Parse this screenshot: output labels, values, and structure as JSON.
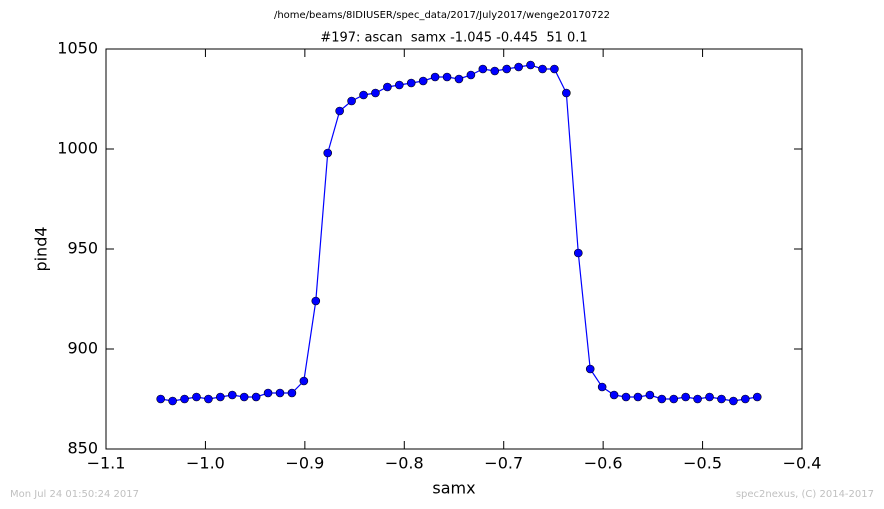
{
  "chart_data": {
    "type": "line",
    "title": "/home/beams/8IDIUSER/spec_data/2017/July2017/wenge20170722",
    "subtitle": "#197: ascan  samx -1.045 -0.445  51 0.1",
    "x_label": "samx",
    "y_label": "pind4",
    "annotations": [
      "Mon Jul 24 01:50:24 2017",
      "spec2nexus, (C) 2014-2017"
    ],
    "x": [
      -1.045,
      -1.033,
      -1.021,
      -1.009,
      -0.997,
      -0.985,
      -0.973,
      -0.961,
      -0.949,
      -0.937,
      -0.925,
      -0.913,
      -0.901,
      -0.889,
      -0.877,
      -0.865,
      -0.853,
      -0.841,
      -0.829,
      -0.817,
      -0.805,
      -0.793,
      -0.781,
      -0.769,
      -0.757,
      -0.745,
      -0.733,
      -0.721,
      -0.709,
      -0.697,
      -0.685,
      -0.673,
      -0.661,
      -0.649,
      -0.637,
      -0.625,
      -0.613,
      -0.601,
      -0.589,
      -0.577,
      -0.565,
      -0.553,
      -0.541,
      -0.529,
      -0.517,
      -0.505,
      -0.493,
      -0.481,
      -0.469,
      -0.457,
      -0.445
    ],
    "series": [
      {
        "name": "pind4",
        "color": "#0000ff",
        "values": [
          875,
          874,
          875,
          876,
          875,
          876,
          877,
          876,
          876,
          878,
          878,
          878,
          884,
          924,
          998,
          1019,
          1024,
          1027,
          1028,
          1031,
          1032,
          1033,
          1034,
          1036,
          1036,
          1035,
          1037,
          1040,
          1039,
          1040,
          1041,
          1042,
          1040,
          1040,
          1028,
          948,
          890,
          881,
          877,
          876,
          876,
          877,
          875,
          875,
          876,
          875,
          876,
          875,
          874,
          875,
          876
        ]
      }
    ],
    "xlim": [
      -1.1,
      -0.4
    ],
    "xticks": [
      {
        "value": -1.1,
        "label": "−1.1"
      },
      {
        "value": -1.0,
        "label": "−1.0"
      },
      {
        "value": -0.9,
        "label": "−0.9"
      },
      {
        "value": -0.8,
        "label": "−0.8"
      },
      {
        "value": -0.7,
        "label": "−0.7"
      },
      {
        "value": -0.6,
        "label": "−0.6"
      },
      {
        "value": -0.5,
        "label": "−0.5"
      },
      {
        "value": -0.4,
        "label": "−0.4"
      }
    ],
    "ylim": [
      850,
      1050
    ],
    "yticks": [
      850,
      900,
      950,
      1000,
      1050
    ],
    "grid": false
  }
}
